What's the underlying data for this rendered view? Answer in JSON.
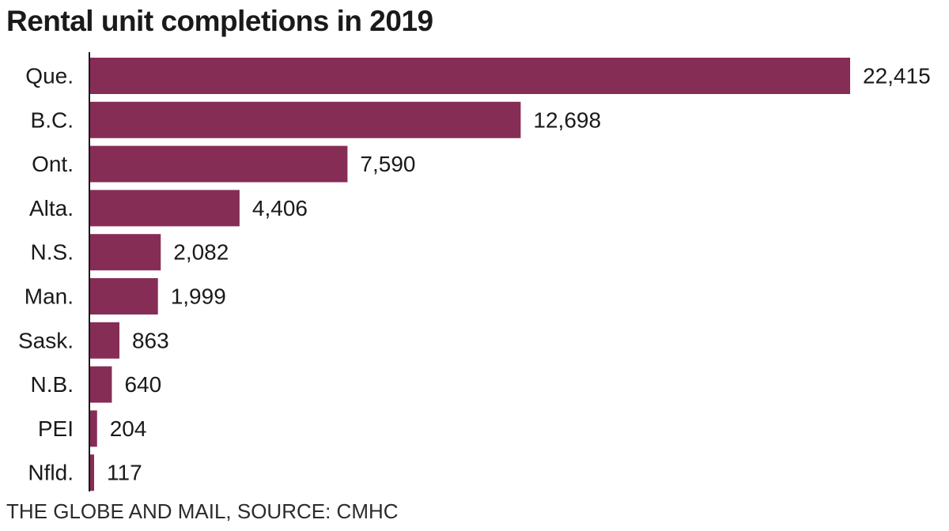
{
  "chart_data": {
    "type": "bar",
    "orientation": "horizontal",
    "title": "Rental unit completions in 2019",
    "categories": [
      "Que.",
      "B.C.",
      "Ont.",
      "Alta.",
      "N.S.",
      "Man.",
      "Sask.",
      "N.B.",
      "PEI",
      "Nfld."
    ],
    "values": [
      22415,
      12698,
      7590,
      4406,
      2082,
      1999,
      863,
      640,
      204,
      117
    ],
    "value_labels": [
      "22,415",
      "12,698",
      "7,590",
      "4,406",
      "2,082",
      "1,999",
      "863",
      "640",
      "204",
      "117"
    ],
    "xlabel": "",
    "ylabel": "",
    "xlim": [
      0,
      22415
    ],
    "grid": false,
    "bar_color": "#862d56",
    "source": "THE GLOBE AND MAIL, SOURCE: CMHC"
  }
}
